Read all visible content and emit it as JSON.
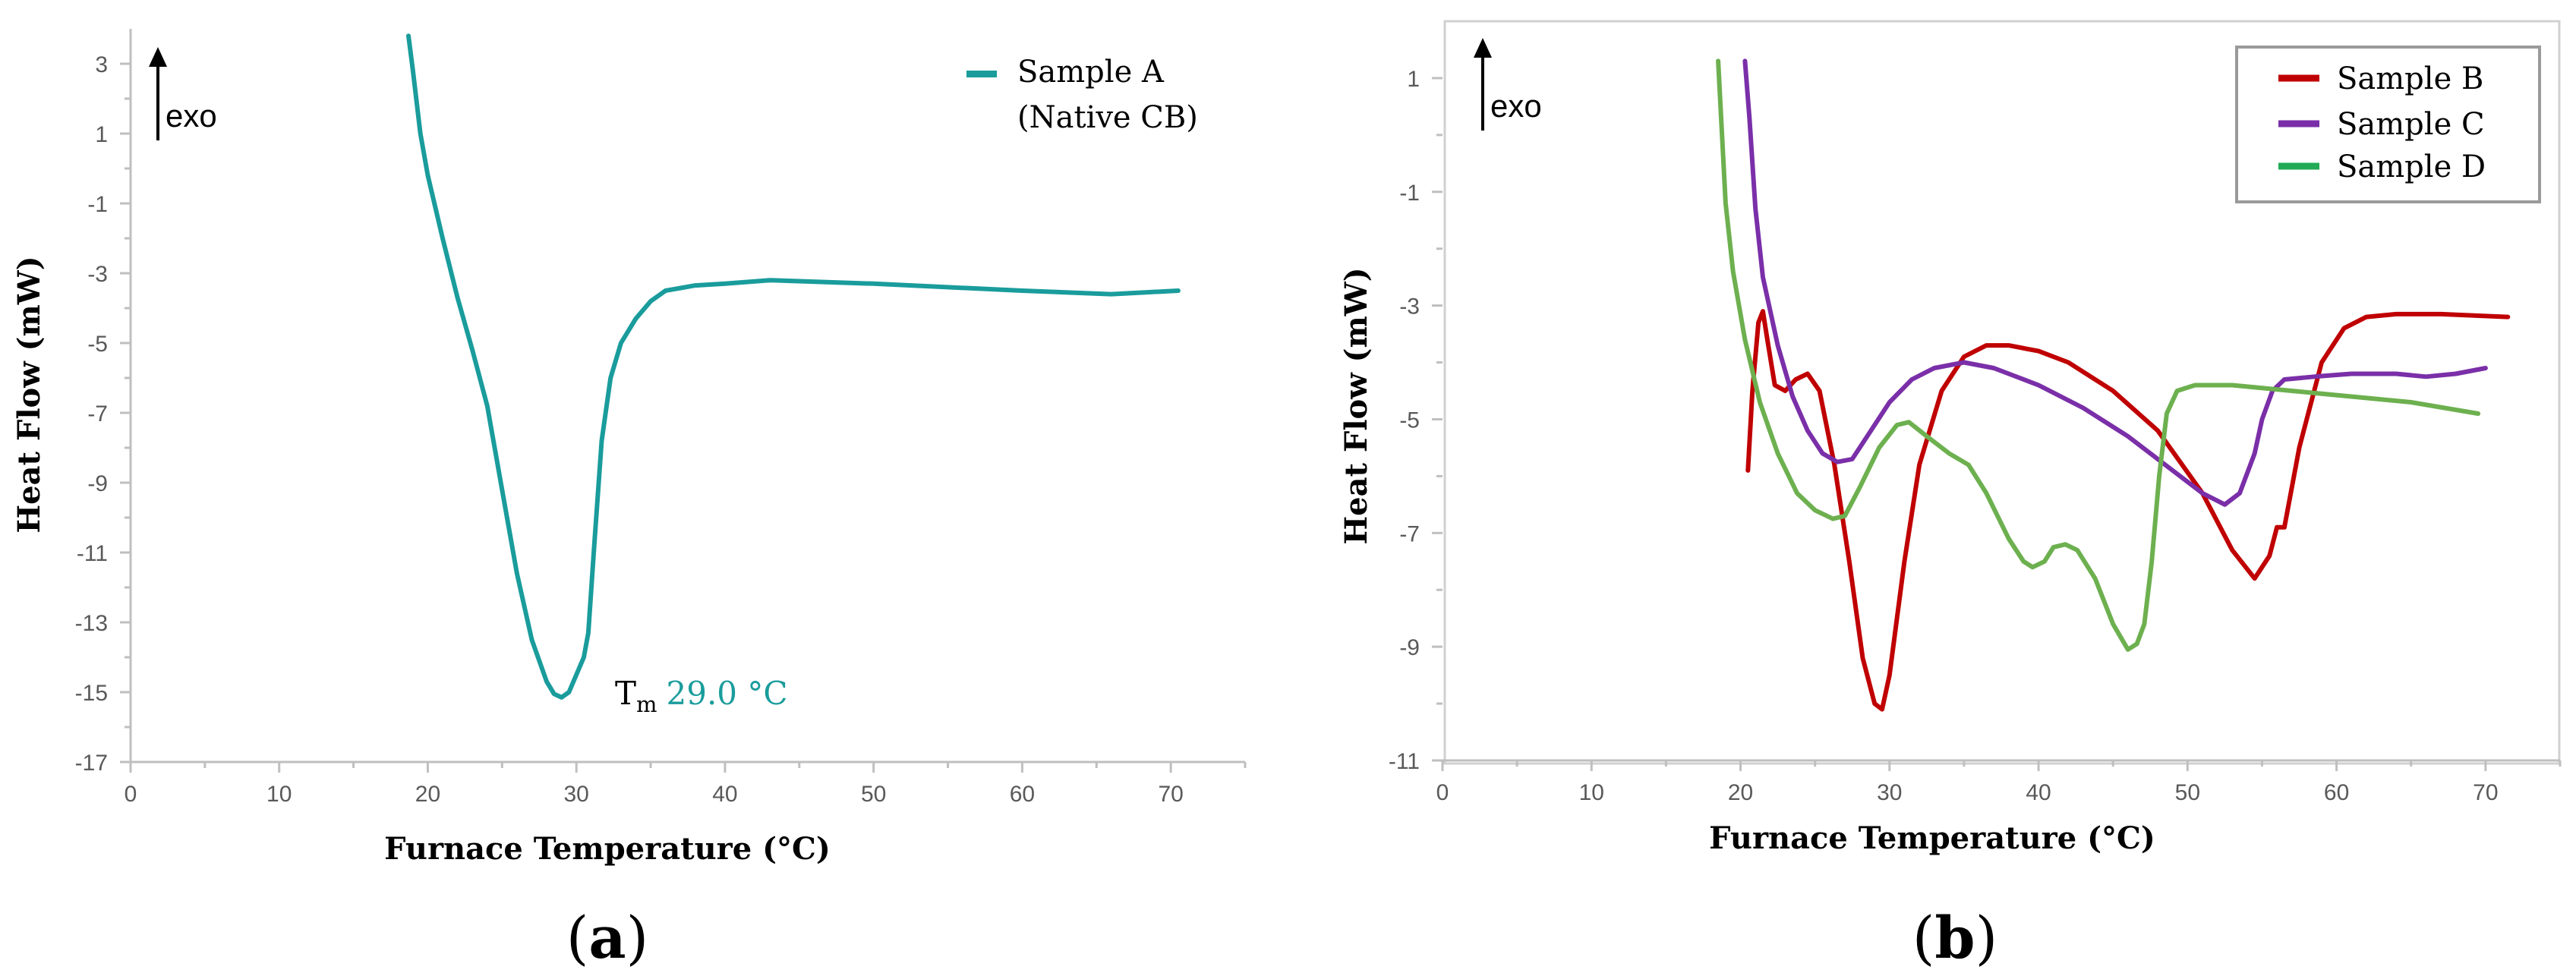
{
  "colors": {
    "axis": "#bfbfbf",
    "text": "#595959",
    "black": "#000000",
    "sample_a": "#1a9c9c",
    "sample_b": "#c00000",
    "sample_c": "#7a2fa8",
    "sample_d": "#6db04f",
    "legend_d": "#22aa55"
  },
  "chart_data": [
    {
      "type": "line",
      "panel_label_paren_open": "(",
      "panel_label": "a",
      "panel_label_paren_close": ")",
      "xlabel": "Furnace Temperature (°C)",
      "ylabel": "Heat Flow (mW)",
      "xlim": [
        0,
        75
      ],
      "ylim": [
        -17,
        4
      ],
      "xticks": [
        0,
        10,
        20,
        30,
        40,
        50,
        60,
        70
      ],
      "yticks": [
        3,
        1,
        -1,
        -3,
        -5,
        -7,
        -9,
        -11,
        -13,
        -15,
        -17
      ],
      "exo_label": "exo",
      "annotation": {
        "prefix": "T",
        "sub": "m",
        "value_text": "29.0 °C",
        "x": 29.0,
        "y": -15.2
      },
      "series": [
        {
          "name": "Sample A",
          "legend_line2": "(Native CB)",
          "color_key": "sample_a",
          "points": [
            [
              18.7,
              3.8
            ],
            [
              19,
              2.8
            ],
            [
              19.5,
              1.0
            ],
            [
              20,
              -0.2
            ],
            [
              21,
              -2.0
            ],
            [
              22,
              -3.7
            ],
            [
              23,
              -5.2
            ],
            [
              24,
              -6.8
            ],
            [
              25,
              -9.2
            ],
            [
              26,
              -11.6
            ],
            [
              27,
              -13.5
            ],
            [
              28,
              -14.7
            ],
            [
              28.5,
              -15.05
            ],
            [
              29,
              -15.15
            ],
            [
              29.5,
              -15.0
            ],
            [
              30,
              -14.5
            ],
            [
              30.5,
              -14.0
            ],
            [
              30.8,
              -13.3
            ],
            [
              31.2,
              -10.8
            ],
            [
              31.7,
              -7.8
            ],
            [
              32.3,
              -6.0
            ],
            [
              33,
              -5.0
            ],
            [
              34,
              -4.3
            ],
            [
              35,
              -3.8
            ],
            [
              36,
              -3.5
            ],
            [
              38,
              -3.35
            ],
            [
              40,
              -3.3
            ],
            [
              43,
              -3.2
            ],
            [
              50,
              -3.3
            ],
            [
              60,
              -3.5
            ],
            [
              66,
              -3.6
            ],
            [
              70.5,
              -3.5
            ]
          ]
        }
      ]
    },
    {
      "type": "line",
      "panel_label_paren_open": "(",
      "panel_label": "b",
      "panel_label_paren_close": ")",
      "xlabel": "Furnace Temperature (°C)",
      "ylabel": "Heat Flow (mW)",
      "xlim": [
        0,
        75
      ],
      "ylim": [
        -11,
        2
      ],
      "xticks": [
        0,
        10,
        20,
        30,
        40,
        50,
        60,
        70
      ],
      "yticks": [
        1,
        -1,
        -3,
        -5,
        -7,
        -9,
        -11
      ],
      "exo_label": "exo",
      "series": [
        {
          "name": "Sample B",
          "color_key": "sample_b",
          "points": [
            [
              20.5,
              -5.9
            ],
            [
              20.8,
              -4.5
            ],
            [
              21.2,
              -3.3
            ],
            [
              21.5,
              -3.1
            ],
            [
              21.8,
              -3.6
            ],
            [
              22.3,
              -4.4
            ],
            [
              23,
              -4.5
            ],
            [
              23.7,
              -4.3
            ],
            [
              24.5,
              -4.2
            ],
            [
              25.3,
              -4.5
            ],
            [
              26.3,
              -5.8
            ],
            [
              27.3,
              -7.5
            ],
            [
              28.2,
              -9.2
            ],
            [
              29,
              -10.0
            ],
            [
              29.5,
              -10.1
            ],
            [
              30,
              -9.5
            ],
            [
              31,
              -7.5
            ],
            [
              32,
              -5.8
            ],
            [
              33.5,
              -4.5
            ],
            [
              35,
              -3.9
            ],
            [
              36.5,
              -3.7
            ],
            [
              38,
              -3.7
            ],
            [
              40,
              -3.8
            ],
            [
              42,
              -4.0
            ],
            [
              45,
              -4.5
            ],
            [
              48,
              -5.2
            ],
            [
              51,
              -6.3
            ],
            [
              53,
              -7.3
            ],
            [
              54.5,
              -7.8
            ],
            [
              55.5,
              -7.4
            ],
            [
              56,
              -6.9
            ],
            [
              56.5,
              -6.9
            ],
            [
              57.5,
              -5.5
            ],
            [
              59,
              -4.0
            ],
            [
              60.5,
              -3.4
            ],
            [
              62,
              -3.2
            ],
            [
              64,
              -3.15
            ],
            [
              67,
              -3.15
            ],
            [
              71.5,
              -3.2
            ]
          ]
        },
        {
          "name": "Sample C",
          "color_key": "sample_c",
          "points": [
            [
              20.3,
              1.3
            ],
            [
              20.6,
              0.3
            ],
            [
              21,
              -1.3
            ],
            [
              21.5,
              -2.5
            ],
            [
              22.5,
              -3.7
            ],
            [
              23.5,
              -4.6
            ],
            [
              24.5,
              -5.2
            ],
            [
              25.5,
              -5.6
            ],
            [
              26.5,
              -5.75
            ],
            [
              27.5,
              -5.7
            ],
            [
              28.5,
              -5.3
            ],
            [
              30,
              -4.7
            ],
            [
              31.5,
              -4.3
            ],
            [
              33,
              -4.1
            ],
            [
              35,
              -4.0
            ],
            [
              37,
              -4.1
            ],
            [
              40,
              -4.4
            ],
            [
              43,
              -4.8
            ],
            [
              46,
              -5.3
            ],
            [
              49,
              -5.9
            ],
            [
              51,
              -6.3
            ],
            [
              52.5,
              -6.5
            ],
            [
              53.5,
              -6.3
            ],
            [
              54.5,
              -5.6
            ],
            [
              55,
              -5.0
            ],
            [
              55.7,
              -4.5
            ],
            [
              56.5,
              -4.3
            ],
            [
              58.5,
              -4.25
            ],
            [
              61,
              -4.2
            ],
            [
              64,
              -4.2
            ],
            [
              66,
              -4.25
            ],
            [
              68,
              -4.2
            ],
            [
              70,
              -4.1
            ]
          ]
        },
        {
          "name": "Sample D",
          "color_key": "sample_d",
          "legend_color_key": "legend_d",
          "points": [
            [
              18.5,
              1.3
            ],
            [
              18.7,
              0.3
            ],
            [
              19,
              -1.2
            ],
            [
              19.5,
              -2.4
            ],
            [
              20.3,
              -3.6
            ],
            [
              21.3,
              -4.7
            ],
            [
              22.5,
              -5.6
            ],
            [
              23.8,
              -6.3
            ],
            [
              25,
              -6.6
            ],
            [
              26.2,
              -6.75
            ],
            [
              27,
              -6.7
            ],
            [
              28,
              -6.2
            ],
            [
              29.3,
              -5.5
            ],
            [
              30.5,
              -5.1
            ],
            [
              31.3,
              -5.05
            ],
            [
              32.5,
              -5.3
            ],
            [
              34,
              -5.6
            ],
            [
              35.3,
              -5.8
            ],
            [
              36.5,
              -6.3
            ],
            [
              38,
              -7.1
            ],
            [
              39,
              -7.5
            ],
            [
              39.6,
              -7.6
            ],
            [
              40.4,
              -7.5
            ],
            [
              41,
              -7.25
            ],
            [
              41.8,
              -7.2
            ],
            [
              42.6,
              -7.3
            ],
            [
              43.8,
              -7.8
            ],
            [
              45,
              -8.6
            ],
            [
              46,
              -9.05
            ],
            [
              46.6,
              -8.95
            ],
            [
              47.1,
              -8.6
            ],
            [
              47.6,
              -7.5
            ],
            [
              48.1,
              -6.0
            ],
            [
              48.6,
              -4.9
            ],
            [
              49.3,
              -4.5
            ],
            [
              50.5,
              -4.4
            ],
            [
              53,
              -4.4
            ],
            [
              57,
              -4.5
            ],
            [
              61,
              -4.6
            ],
            [
              65,
              -4.7
            ],
            [
              69.5,
              -4.9
            ]
          ]
        }
      ]
    }
  ]
}
